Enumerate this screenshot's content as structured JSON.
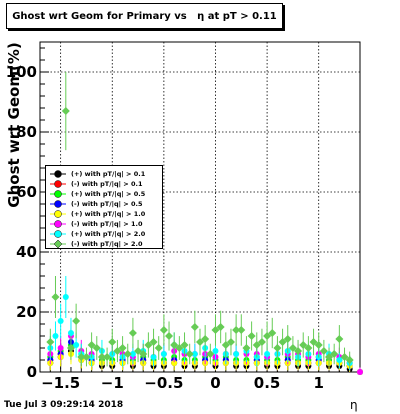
{
  "chart_data": {
    "type": "scatter",
    "title": "Ghost wrt Geom for Primary vs   η at pT > 0.11",
    "xlabel": "η",
    "ylabel": "Ghost wrt Geom(%)",
    "xlim": [
      -1.7,
      1.4
    ],
    "ylim": [
      0,
      110
    ],
    "xticks": [
      -1.5,
      -1,
      -0.5,
      0,
      0.5,
      1
    ],
    "xtick_labels": [
      "−1.5",
      "−1",
      "−0.5",
      "0",
      "0.5",
      "1"
    ],
    "yticks": [
      0,
      20,
      40,
      60,
      80,
      100
    ],
    "ytick_labels": [
      "0",
      "20",
      "40",
      "60",
      "80",
      "100"
    ],
    "grid": true,
    "legend_position": "left-middle",
    "series": [
      {
        "name": "(+) with pT/|q| > 0.1",
        "color": "#000000",
        "marker": "circle",
        "x": [
          -1.6,
          -1.5,
          -1.4,
          -1.3,
          -1.2,
          -1.1,
          -1.0,
          -0.9,
          -0.8,
          -0.7,
          -0.6,
          -0.5,
          -0.4,
          -0.3,
          -0.2,
          -0.1,
          0.0,
          0.1,
          0.2,
          0.3,
          0.4,
          0.5,
          0.6,
          0.7,
          0.8,
          0.9,
          1.0,
          1.1,
          1.2,
          1.3,
          1.4
        ],
        "y": [
          3,
          5,
          7,
          4,
          3,
          2,
          2,
          3,
          2,
          3,
          2,
          2,
          3,
          2,
          2,
          3,
          2,
          3,
          2,
          2,
          3,
          2,
          2,
          3,
          2,
          2,
          3,
          2,
          2,
          1,
          0
        ]
      },
      {
        "name": "(-) with pT/|q| > 0.1",
        "color": "#ff0000",
        "marker": "circle",
        "x": [
          -1.6,
          -1.5,
          -1.4,
          -1.3,
          -1.2,
          -1.1,
          -1.0,
          -0.9,
          -0.8,
          -0.7,
          -0.6,
          -0.5,
          -0.4,
          -0.3,
          -0.2,
          -0.1,
          0.0,
          0.1,
          0.2,
          0.3,
          0.4,
          0.5,
          0.6,
          0.7,
          0.8,
          0.9,
          1.0,
          1.1,
          1.2,
          1.3,
          1.4
        ],
        "y": [
          4,
          6,
          8,
          5,
          4,
          3,
          3,
          4,
          3,
          4,
          3,
          3,
          4,
          3,
          3,
          4,
          3,
          4,
          3,
          3,
          4,
          3,
          3,
          4,
          3,
          3,
          4,
          3,
          3,
          2,
          0
        ]
      },
      {
        "name": "(+) with pT/|q| > 0.5",
        "color": "#00ff00",
        "marker": "circle",
        "x": [
          -1.6,
          -1.5,
          -1.4,
          -1.3,
          -1.2,
          -1.1,
          -1.0,
          -0.9,
          -0.8,
          -0.7,
          -0.6,
          -0.5,
          -0.4,
          -0.3,
          -0.2,
          -0.1,
          0.0,
          0.1,
          0.2,
          0.3,
          0.4,
          0.5,
          0.6,
          0.7,
          0.8,
          0.9,
          1.0,
          1.1,
          1.2,
          1.3,
          1.4
        ],
        "y": [
          5,
          7,
          9,
          6,
          5,
          4,
          4,
          5,
          4,
          5,
          4,
          4,
          5,
          4,
          4,
          5,
          4,
          5,
          4,
          4,
          5,
          4,
          4,
          5,
          4,
          4,
          5,
          4,
          4,
          3,
          0
        ]
      },
      {
        "name": "(-) with pT/|q| > 0.5",
        "color": "#0000ff",
        "marker": "circle",
        "x": [
          -1.6,
          -1.5,
          -1.4,
          -1.3,
          -1.2,
          -1.1,
          -1.0,
          -0.9,
          -0.8,
          -0.7,
          -0.6,
          -0.5,
          -0.4,
          -0.3,
          -0.2,
          -0.1,
          0.0,
          0.1,
          0.2,
          0.3,
          0.4,
          0.5,
          0.6,
          0.7,
          0.8,
          0.9,
          1.0,
          1.1,
          1.2,
          1.3,
          1.4
        ],
        "y": [
          4,
          6,
          10,
          5,
          4,
          3,
          3,
          4,
          3,
          4,
          3,
          3,
          4,
          3,
          3,
          4,
          3,
          4,
          3,
          3,
          4,
          3,
          3,
          4,
          3,
          3,
          4,
          3,
          3,
          2,
          0
        ]
      },
      {
        "name": "(+) with pT/|q| > 1.0",
        "color": "#ffff00",
        "marker": "circle",
        "x": [
          -1.6,
          -1.5,
          -1.4,
          -1.3,
          -1.2,
          -1.1,
          -1.0,
          -0.9,
          -0.8,
          -0.7,
          -0.6,
          -0.5,
          -0.4,
          -0.3,
          -0.2,
          -0.1,
          0.0,
          0.1,
          0.2,
          0.3,
          0.4,
          0.5,
          0.6,
          0.7,
          0.8,
          0.9,
          1.0,
          1.1,
          1.2,
          1.3,
          1.4
        ],
        "y": [
          3,
          5,
          6,
          4,
          3,
          3,
          3,
          3,
          3,
          3,
          3,
          3,
          3,
          3,
          3,
          3,
          3,
          3,
          3,
          3,
          3,
          3,
          3,
          3,
          3,
          3,
          3,
          3,
          3,
          2,
          0
        ]
      },
      {
        "name": "(-) with pT/|q| > 1.0",
        "color": "#ff00ff",
        "marker": "circle",
        "x": [
          -1.6,
          -1.5,
          -1.4,
          -1.3,
          -1.2,
          -1.1,
          -1.0,
          -0.9,
          -0.8,
          -0.7,
          -0.6,
          -0.5,
          -0.4,
          -0.3,
          -0.2,
          -0.1,
          0.0,
          0.1,
          0.2,
          0.3,
          0.4,
          0.5,
          0.6,
          0.7,
          0.8,
          0.9,
          1.0,
          1.1,
          1.2,
          1.3,
          1.4
        ],
        "y": [
          6,
          8,
          12,
          7,
          6,
          5,
          6,
          6,
          5,
          6,
          5,
          6,
          7,
          6,
          6,
          6,
          5,
          6,
          6,
          6,
          6,
          5,
          6,
          6,
          6,
          5,
          6,
          5,
          5,
          3,
          0
        ]
      },
      {
        "name": "(+) with pT/|q| > 2.0",
        "color": "#00ffff",
        "marker": "circle",
        "x": [
          -1.6,
          -1.55,
          -1.5,
          -1.45,
          -1.4,
          -1.35,
          -1.3,
          -1.2,
          -1.1,
          -1.0,
          -0.9,
          -0.8,
          -0.7,
          -0.6,
          -0.5,
          -0.4,
          -0.3,
          -0.2,
          -0.1,
          0.0,
          0.1,
          0.2,
          0.3,
          0.4,
          0.5,
          0.6,
          0.7,
          0.8,
          0.9,
          1.0,
          1.1,
          1.2,
          1.3
        ],
        "y": [
          8,
          12,
          17,
          25,
          13,
          9,
          6,
          5,
          7,
          6,
          5,
          6,
          7,
          5,
          6,
          9,
          7,
          6,
          8,
          7,
          6,
          6,
          7,
          5,
          6,
          6,
          7,
          5,
          6,
          5,
          6,
          4,
          3
        ]
      },
      {
        "name": "(-) with pT/|q| > 2.0",
        "color": "#66cc55",
        "marker": "diamond",
        "x": [
          -1.6,
          -1.55,
          -1.45,
          -1.4,
          -1.35,
          -1.3,
          -1.25,
          -1.2,
          -1.15,
          -1.1,
          -1.05,
          -1.0,
          -0.95,
          -0.9,
          -0.85,
          -0.8,
          -0.75,
          -0.7,
          -0.65,
          -0.6,
          -0.55,
          -0.5,
          -0.45,
          -0.4,
          -0.35,
          -0.3,
          -0.25,
          -0.2,
          -0.15,
          -0.1,
          -0.05,
          0.0,
          0.05,
          0.1,
          0.15,
          0.2,
          0.25,
          0.3,
          0.35,
          0.4,
          0.45,
          0.5,
          0.55,
          0.6,
          0.65,
          0.7,
          0.75,
          0.8,
          0.85,
          0.9,
          0.95,
          1.0,
          1.05,
          1.1,
          1.15,
          1.2,
          1.25,
          1.3
        ],
        "y": [
          10,
          25,
          87,
          8,
          17,
          5,
          5,
          9,
          8,
          5,
          5,
          10,
          7,
          8,
          6,
          13,
          7,
          6,
          9,
          10,
          8,
          14,
          12,
          9,
          8,
          9,
          6,
          15,
          10,
          11,
          6,
          14,
          15,
          9,
          10,
          14,
          14,
          8,
          12,
          9,
          10,
          12,
          13,
          8,
          10,
          11,
          8,
          7,
          9,
          8,
          10,
          9,
          7,
          5,
          6,
          11,
          5,
          4
        ]
      }
    ]
  },
  "timestamp": "Tue Jul  3 09:29:14 2018"
}
